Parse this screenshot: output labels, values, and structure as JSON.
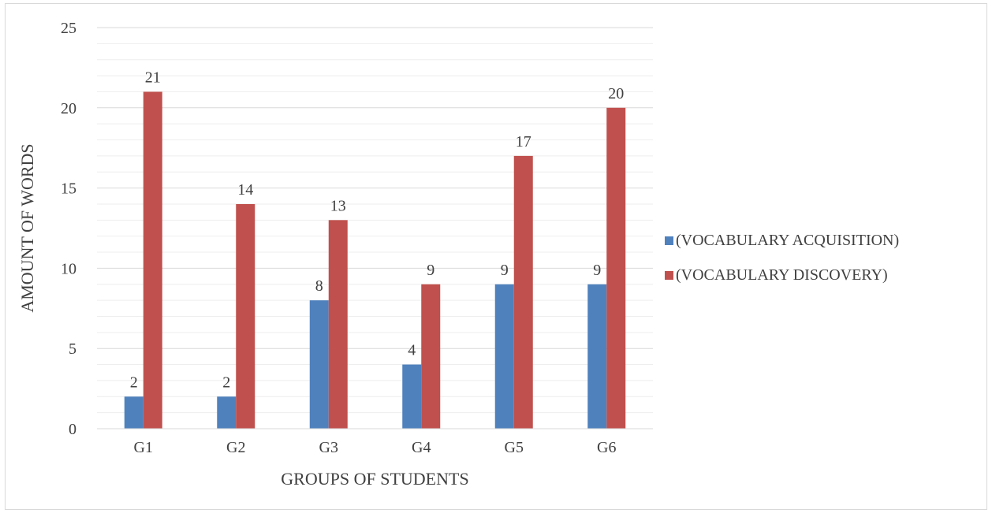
{
  "chart_data": {
    "type": "bar",
    "title": "",
    "xlabel": "GROUPS OF STUDENTS",
    "ylabel": "AMOUNT OF WORDS",
    "categories": [
      "G1",
      "G2",
      "G3",
      "G4",
      "G5",
      "G6"
    ],
    "series": [
      {
        "name": "(VOCABULARY ACQUISITION)",
        "values": [
          2,
          2,
          8,
          4,
          9,
          9
        ],
        "color": "#4f81bd"
      },
      {
        "name": "(VOCABULARY DISCOVERY)",
        "values": [
          21,
          14,
          13,
          9,
          17,
          20
        ],
        "color": "#c0504d"
      }
    ],
    "ylim": [
      0,
      25
    ],
    "yticks": [
      0,
      5,
      10,
      15,
      20,
      25
    ],
    "grid": true,
    "legend": "right",
    "data_labels": true
  }
}
